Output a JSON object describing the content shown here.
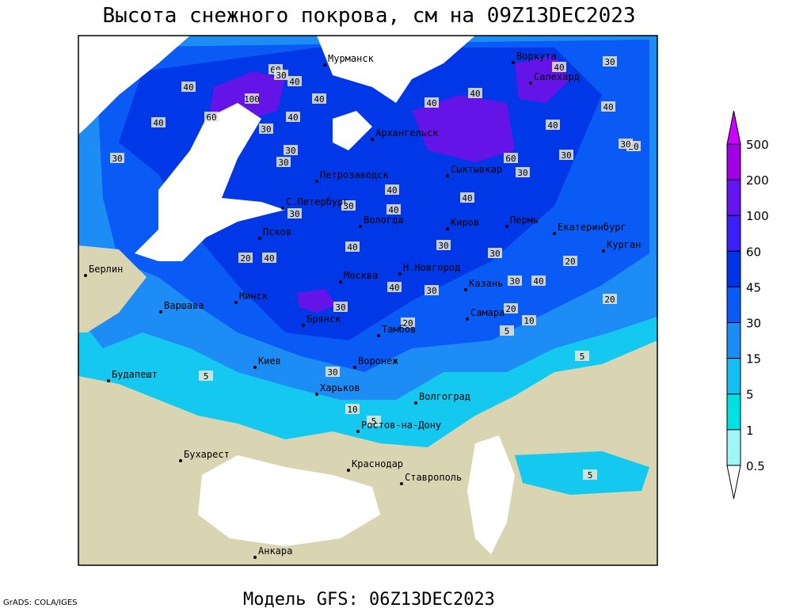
{
  "title": "Высота снежного покрова, см на 09Z13DEC2023",
  "footer": "Модель GFS: 06Z13DEC2023",
  "credit": "GrADS: COLA/IGES",
  "cities": [
    "Мурманск",
    "Воркута",
    "Салехард",
    "Архангельск",
    "Петрозаводск",
    "Сыктывкар",
    "С.Петербург",
    "Вологда",
    "Киров",
    "Пермь",
    "Екатеринбург",
    "Курган",
    "Псков",
    "Берлин",
    "Н.Новгород",
    "Москва",
    "Казань",
    "Минск",
    "Варшава",
    "Брянск",
    "Самара",
    "Тамбов",
    "Киев",
    "Воронеж",
    "Будапешт",
    "Харьков",
    "Волгоград",
    "Ростов-на-Дону",
    "Бухарест",
    "Краснодар",
    "Ставрополь",
    "Анкара"
  ],
  "contour_labels": [
    60,
    30,
    40,
    40,
    100,
    40,
    60,
    40,
    30,
    30,
    40,
    40,
    40,
    30,
    40,
    40,
    40,
    30,
    60,
    30,
    20,
    30,
    30,
    30,
    30,
    30,
    40,
    40,
    40,
    40,
    30,
    30,
    40,
    20,
    20,
    30,
    40,
    40,
    30,
    20,
    30,
    20,
    10,
    20,
    5,
    30,
    5,
    10,
    5,
    5,
    5
  ],
  "legend": {
    "levels": [
      500,
      200,
      100,
      60,
      45,
      30,
      15,
      5,
      1,
      0.5
    ],
    "colors": [
      "#cc00ff",
      "#a000e6",
      "#6414f0",
      "#3c1efa",
      "#0032e6",
      "#0a5af5",
      "#1e8cf5",
      "#14bef0",
      "#00e0e0",
      "#a0f5f5",
      "#ffffff"
    ]
  }
}
